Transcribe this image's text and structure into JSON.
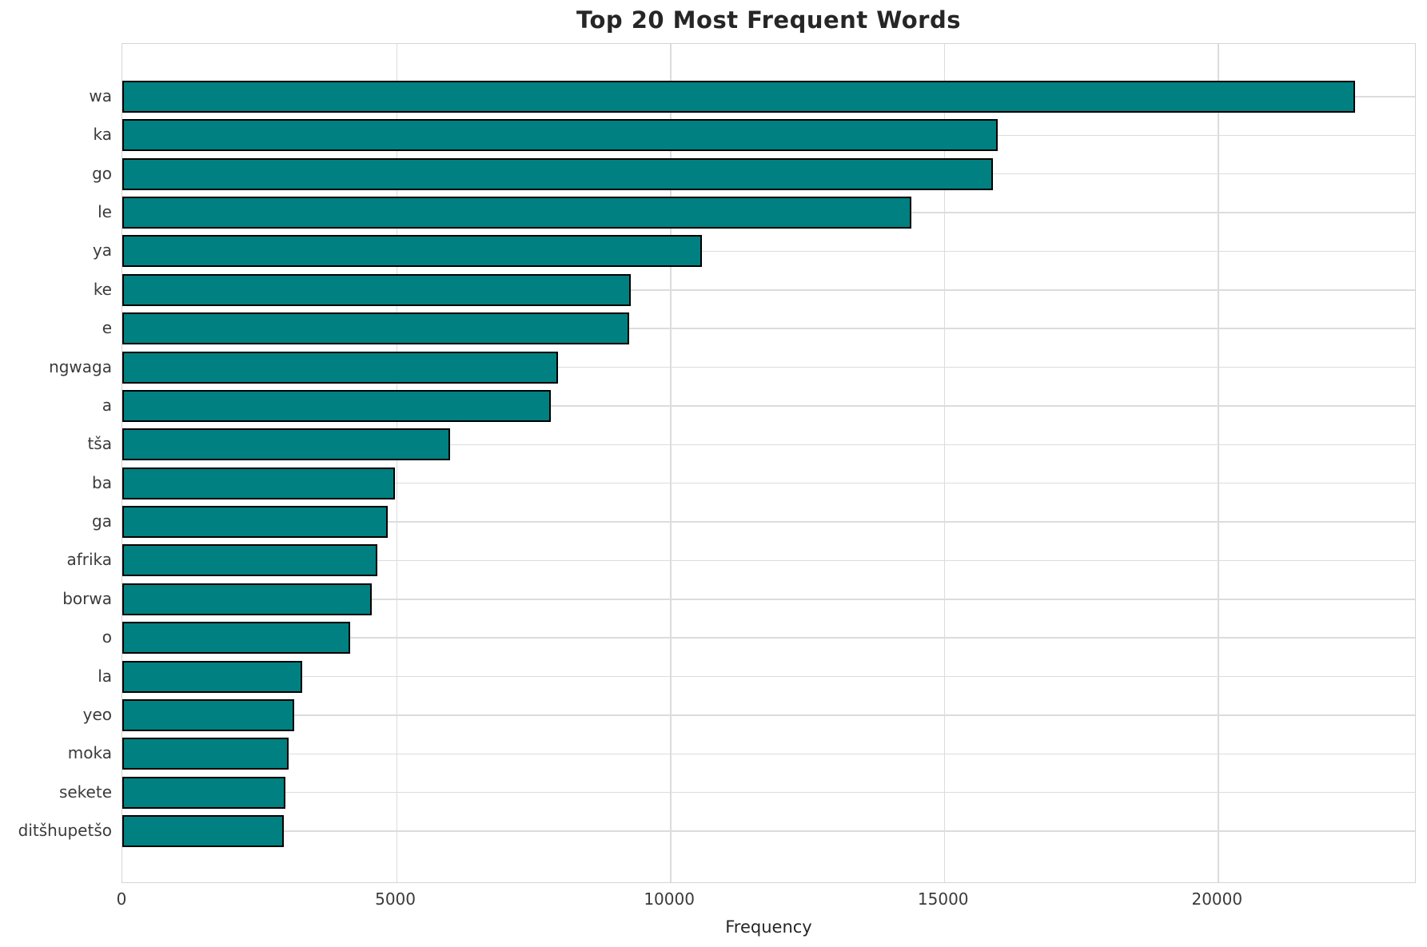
{
  "chart_data": {
    "type": "bar",
    "orientation": "horizontal",
    "title": "Top 20 Most Frequent Words",
    "xlabel": "Frequency",
    "ylabel": "",
    "categories": [
      "wa",
      "ka",
      "go",
      "le",
      "ya",
      "ke",
      "e",
      "ngwaga",
      "a",
      "tša",
      "ba",
      "ga",
      "afrika",
      "borwa",
      "o",
      "la",
      "yeo",
      "moka",
      "sekete",
      "ditšhupetšo"
    ],
    "values": [
      22500,
      15980,
      15890,
      14400,
      10580,
      9280,
      9260,
      7950,
      7830,
      5980,
      4980,
      4850,
      4660,
      4550,
      4160,
      3280,
      3140,
      3030,
      2980,
      2950
    ],
    "xlim": [
      0,
      23630
    ],
    "xticks": [
      0,
      5000,
      10000,
      15000,
      20000
    ],
    "grid": true,
    "legend": "none",
    "bar_color": "#008080",
    "bar_edge_color": "#000000",
    "grid_color": "#dcdcdc",
    "background_color": "#ffffff"
  }
}
